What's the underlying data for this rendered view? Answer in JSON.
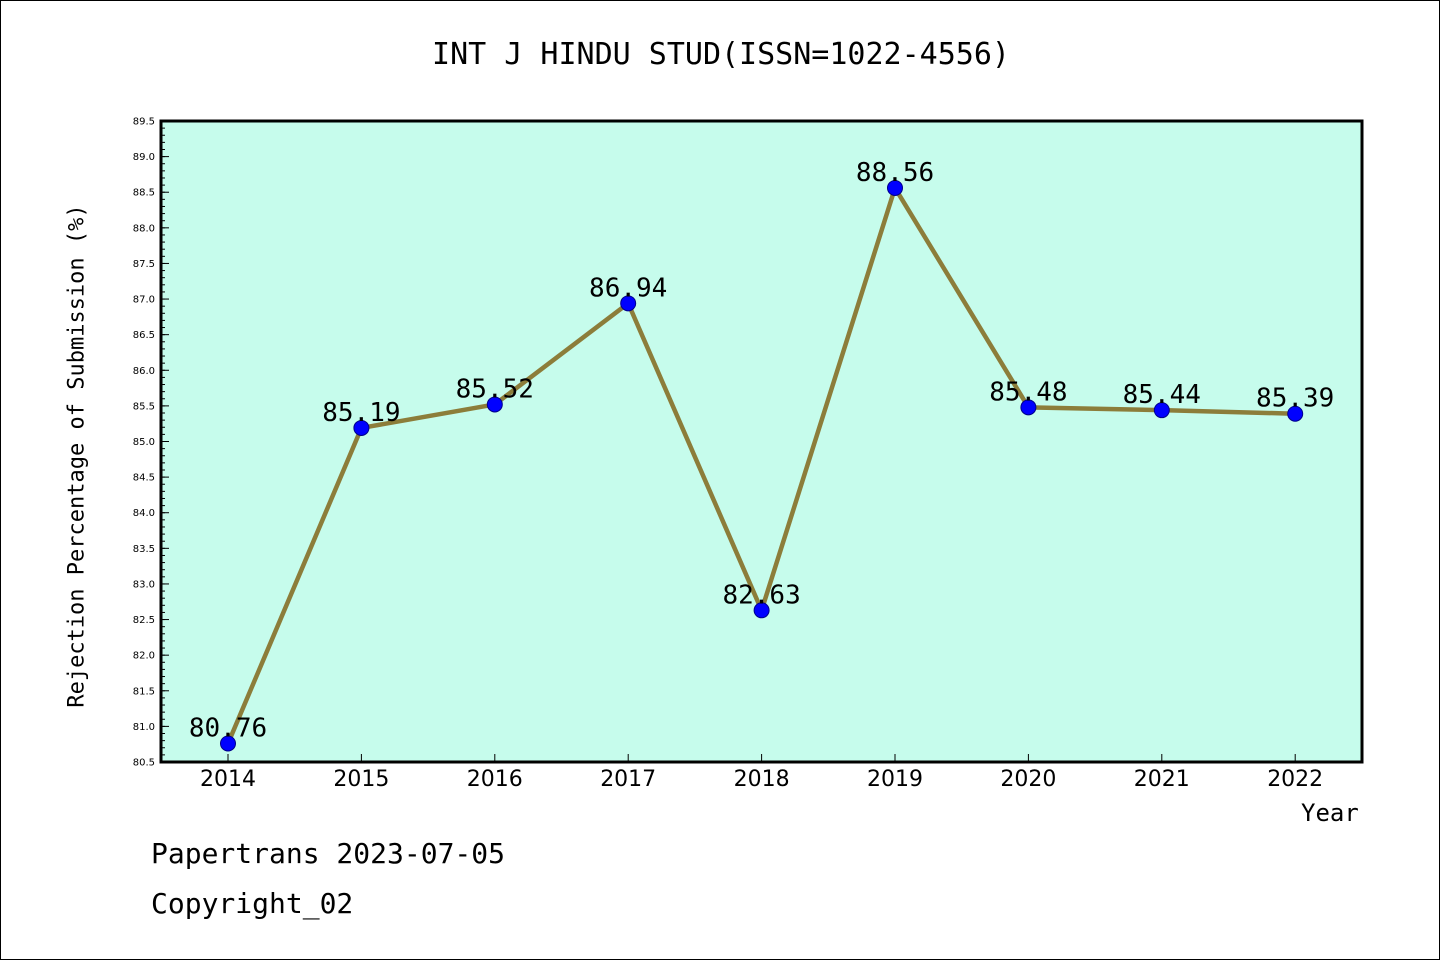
{
  "chart_data": {
    "type": "line",
    "title": "INT J HINDU STUD(ISSN=1022-4556)",
    "xlabel": "Year",
    "ylabel": "Rejection Percentage of Submission (%)",
    "categories": [
      "2014",
      "2015",
      "2016",
      "2017",
      "2018",
      "2019",
      "2020",
      "2021",
      "2022"
    ],
    "series": [
      {
        "values": [
          80.76,
          85.19,
          85.52,
          86.94,
          82.63,
          88.56,
          85.48,
          85.44,
          85.39
        ],
        "data_labels": [
          "80.76",
          "85.19",
          "85.52",
          "86.94",
          "82.63",
          "88.56",
          "85.48",
          "85.44",
          "85.39"
        ]
      }
    ],
    "ylim": [
      80.5,
      89.5
    ],
    "yticks": [
      "80.5",
      "81.0",
      "81.5",
      "82.0",
      "82.5",
      "83.0",
      "83.5",
      "84.0",
      "84.5",
      "85.0",
      "85.5",
      "86.0",
      "86.5",
      "87.0",
      "87.5",
      "88.0",
      "88.5",
      "89.0",
      "89.5"
    ],
    "grid": false,
    "colors": {
      "plot_background": "#c6fcec",
      "line": "#8c7d3a",
      "marker": "#0000ff"
    }
  },
  "footer": {
    "line1": "Papertrans 2023-07-05",
    "line2": "Copyright_02"
  }
}
